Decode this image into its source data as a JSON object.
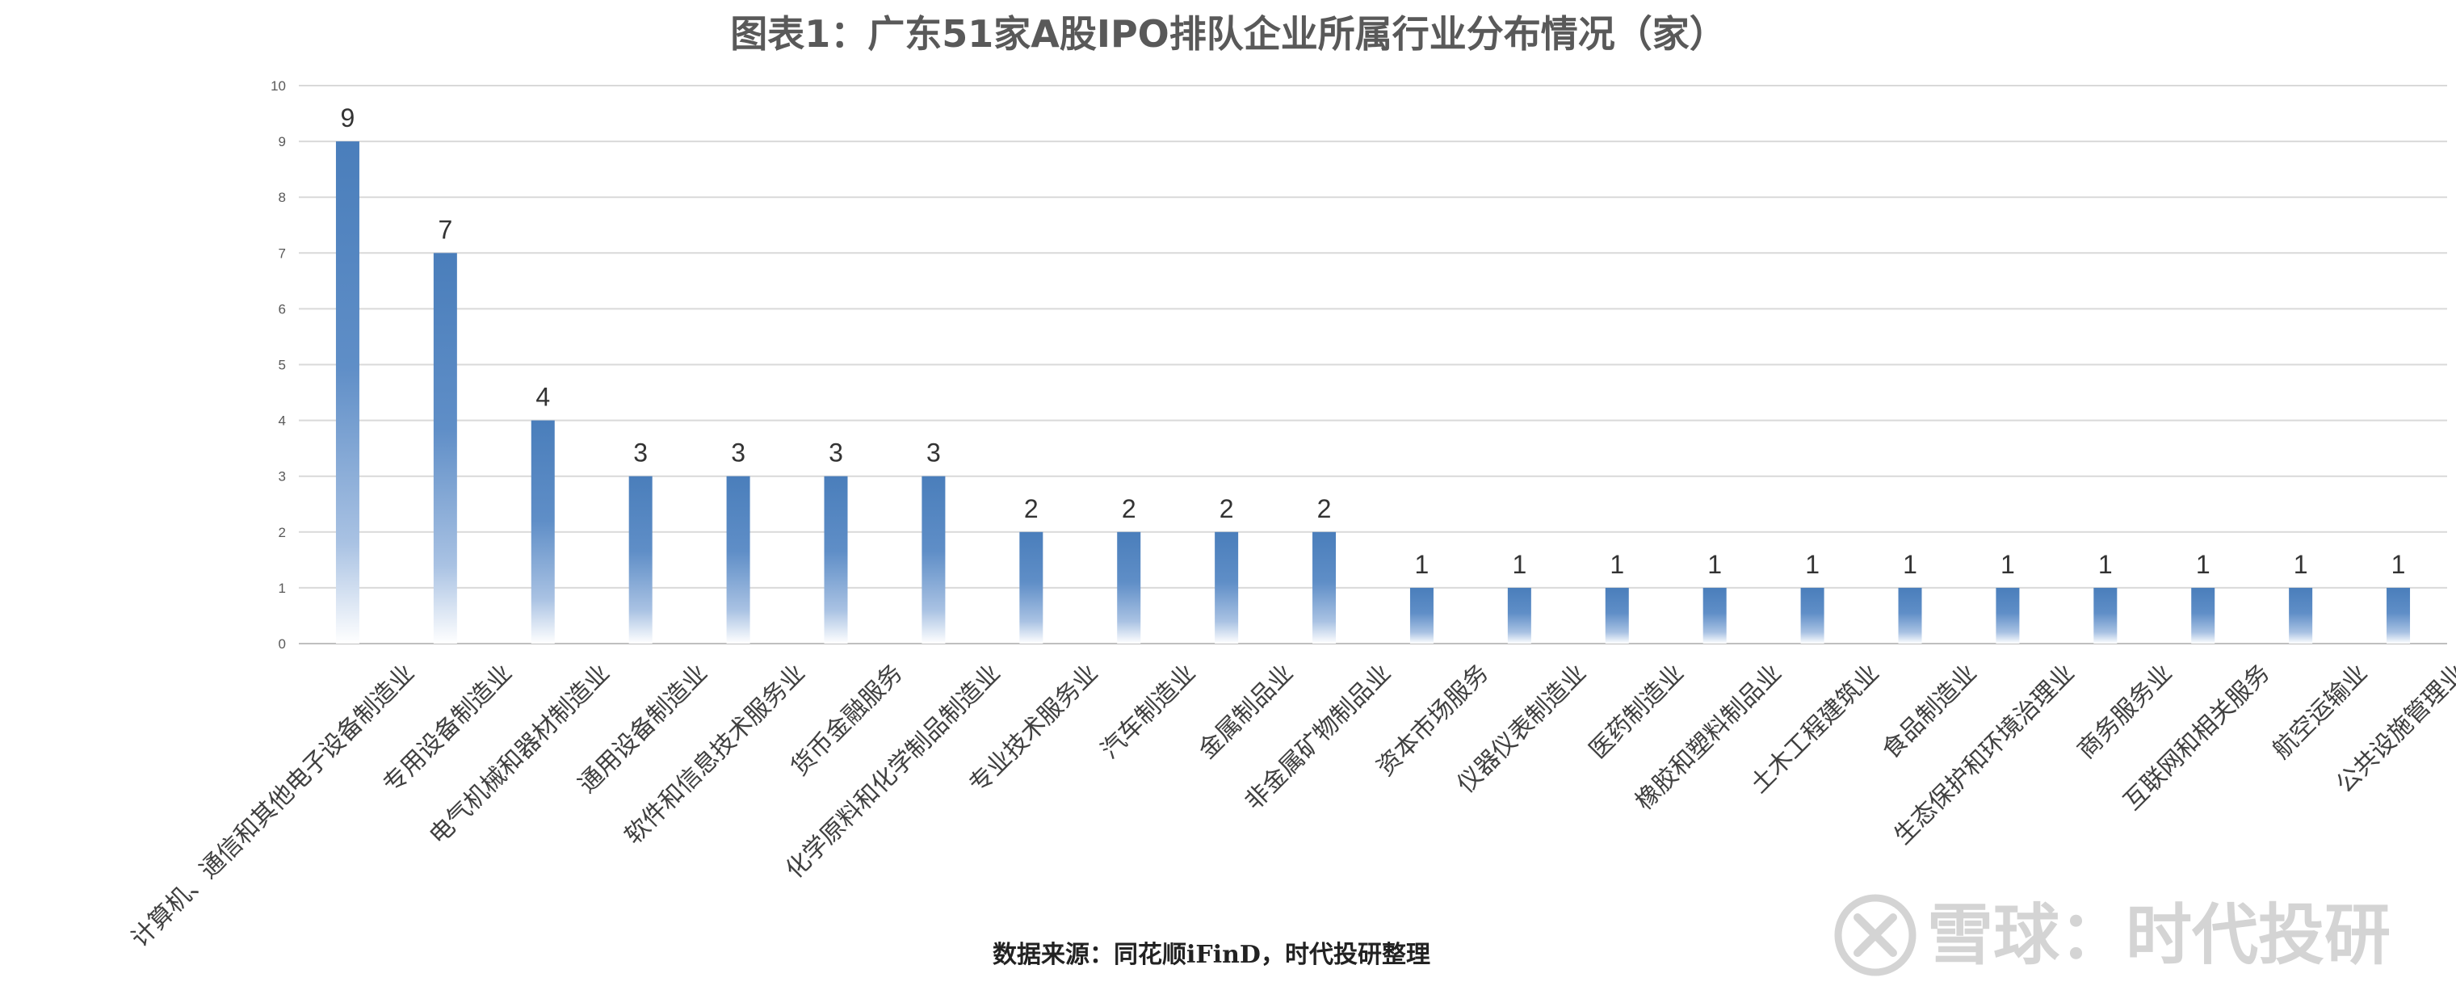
{
  "chart_data": {
    "type": "bar",
    "title": "图表1：广东51家A股IPO排队企业所属行业分布情况（家）",
    "categories": [
      "计算机、通信和其他电子设备制造业",
      "专用设备制造业",
      "电气机械和器材制造业",
      "通用设备制造业",
      "软件和信息技术服务业",
      "货币金融服务",
      "化学原料和化学制品制造业",
      "专业技术服务业",
      "汽车制造业",
      "金属制品业",
      "非金属矿物制品业",
      "资本市场服务",
      "仪器仪表制造业",
      "医药制造业",
      "橡胶和塑料制品业",
      "土木工程建筑业",
      "食品制造业",
      "生态保护和环境治理业",
      "商务服务业",
      "互联网和相关服务",
      "航空运输业",
      "公共设施管理业"
    ],
    "values": [
      9,
      7,
      4,
      3,
      3,
      3,
      3,
      2,
      2,
      2,
      2,
      1,
      1,
      1,
      1,
      1,
      1,
      1,
      1,
      1,
      1,
      1
    ],
    "yticks": [
      "0",
      "1",
      "2",
      "3",
      "4",
      "5",
      "6",
      "7",
      "8",
      "9",
      "10"
    ],
    "ylim": [
      0,
      10
    ],
    "grid": true,
    "legend": "none",
    "bar_color": "#4a7ebb",
    "source": "数据来源：同花顺iFinD，时代投研整理",
    "watermark": "雪球：时代投研"
  }
}
